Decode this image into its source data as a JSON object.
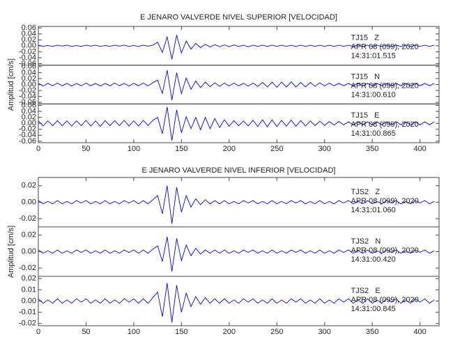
{
  "chart_data": [
    {
      "type": "line",
      "title": "E JENARO VALVERDE NIVEL SUPERIOR [VELOCIDAD]",
      "ylabel": "Amplitud [cm/s]",
      "xlim": [
        0,
        420
      ],
      "xticks": [
        0,
        50,
        100,
        150,
        200,
        250,
        300,
        350,
        400
      ],
      "x": [
        0,
        5,
        10,
        15,
        20,
        25,
        30,
        35,
        40,
        45,
        50,
        55,
        60,
        65,
        70,
        75,
        80,
        85,
        90,
        95,
        100,
        105,
        110,
        115,
        120,
        125,
        130,
        135,
        140,
        145,
        150,
        155,
        160,
        165,
        170,
        175,
        180,
        185,
        190,
        195,
        200,
        205,
        210,
        215,
        220,
        225,
        230,
        235,
        240,
        245,
        250,
        255,
        260,
        265,
        270,
        275,
        280,
        285,
        290,
        295,
        300,
        305,
        310,
        315,
        320,
        325,
        330,
        335,
        340,
        345,
        350,
        355,
        360,
        365,
        370,
        375,
        380,
        385,
        390,
        395,
        400,
        405,
        410,
        415
      ],
      "traces": [
        {
          "label": "TJ15   Z",
          "date": "APR 08 (099), 2020",
          "time": "14:31:01.515",
          "color": "#0000ff",
          "ylim": [
            -0.065,
            0.065
          ],
          "yticks": [
            -0.06,
            -0.04,
            -0.02,
            {
              "value": 0,
              "label": "0.00"
            },
            0.02,
            0.04,
            0.06
          ],
          "values": [
            0.002,
            -0.002,
            0.001,
            -0.002,
            0.002,
            -0.001,
            0.002,
            -0.002,
            0.001,
            -0.002,
            0.002,
            -0.001,
            0.002,
            -0.002,
            0.001,
            -0.002,
            0.002,
            -0.001,
            0.002,
            -0.002,
            0.001,
            -0.002,
            0.002,
            -0.001,
            0.002,
            0.012,
            -0.022,
            0.03,
            -0.045,
            0.036,
            -0.024,
            0.016,
            -0.011,
            0.008,
            -0.006,
            0.005,
            -0.004,
            0.004,
            -0.003,
            0.003,
            -0.003,
            0.003,
            -0.002,
            0.002,
            -0.003,
            0.002,
            -0.002,
            0.002,
            -0.002,
            0.002,
            -0.002,
            0.002,
            -0.002,
            0.002,
            -0.002,
            0.002,
            -0.002,
            0.002,
            -0.002,
            0.002,
            -0.002,
            0.002,
            -0.002,
            0.002,
            -0.002,
            0.002,
            -0.002,
            0.002,
            -0.002,
            0.002,
            -0.002,
            0.002,
            -0.002,
            0.002,
            -0.002,
            0.002,
            -0.002,
            0.002,
            -0.002,
            0.002,
            -0.002,
            0.002,
            -0.002,
            0.002
          ]
        },
        {
          "label": "TJ15   N",
          "date": "APR 08 (099), 2020",
          "time": "14:31:00.610",
          "color": "#0000ff",
          "ylim": [
            -0.065,
            0.065
          ],
          "yticks": [
            -0.06,
            -0.04,
            -0.02,
            {
              "value": 0,
              "label": "0.00"
            },
            0.02,
            0.04,
            0.06
          ],
          "values": [
            0.004,
            -0.005,
            0.004,
            -0.004,
            0.005,
            -0.004,
            0.004,
            -0.005,
            0.004,
            -0.004,
            0.005,
            -0.004,
            0.004,
            -0.005,
            0.004,
            -0.004,
            0.005,
            -0.004,
            0.004,
            -0.005,
            0.004,
            -0.004,
            0.005,
            -0.004,
            0.006,
            0.015,
            -0.03,
            0.048,
            -0.052,
            0.04,
            -0.03,
            0.022,
            -0.016,
            0.012,
            -0.01,
            0.008,
            -0.007,
            0.006,
            -0.006,
            0.005,
            -0.005,
            0.005,
            -0.004,
            0.004,
            -0.005,
            0.005,
            -0.006,
            0.007,
            -0.008,
            0.008,
            -0.009,
            0.008,
            -0.008,
            0.009,
            -0.008,
            0.007,
            -0.008,
            0.007,
            -0.006,
            0.006,
            -0.005,
            0.005,
            -0.004,
            0.004,
            -0.004,
            0.004,
            -0.004,
            0.004,
            -0.004,
            0.004,
            -0.004,
            0.004,
            -0.004,
            0.004,
            -0.004,
            0.004,
            -0.004,
            0.004,
            -0.004,
            0.004,
            -0.004,
            0.004,
            -0.004,
            0.004
          ]
        },
        {
          "label": "TJ15   E",
          "date": "APR 08 (099), 2020",
          "time": "14:31:00.865",
          "color": "#0000ff",
          "ylim": [
            -0.065,
            0.065
          ],
          "yticks": [
            -0.06,
            -0.04,
            -0.02,
            {
              "value": 0,
              "label": "0.00"
            },
            0.02,
            0.04,
            0.06
          ],
          "values": [
            0.008,
            -0.009,
            0.008,
            -0.008,
            0.009,
            -0.008,
            0.008,
            -0.009,
            0.008,
            -0.008,
            0.01,
            -0.009,
            0.008,
            -0.01,
            0.009,
            -0.008,
            0.009,
            -0.008,
            0.01,
            -0.009,
            0.008,
            -0.009,
            0.01,
            -0.008,
            0.01,
            0.02,
            -0.035,
            0.055,
            -0.058,
            0.045,
            -0.032,
            0.022,
            -0.018,
            0.02,
            -0.022,
            0.02,
            -0.018,
            0.016,
            -0.014,
            0.012,
            -0.01,
            0.009,
            -0.008,
            0.008,
            -0.009,
            0.01,
            -0.011,
            0.012,
            -0.012,
            0.012,
            -0.011,
            0.01,
            -0.01,
            0.011,
            -0.01,
            0.009,
            -0.009,
            0.008,
            -0.008,
            0.007,
            -0.007,
            0.006,
            -0.006,
            0.006,
            -0.005,
            0.005,
            -0.005,
            0.005,
            -0.005,
            0.005,
            -0.005,
            0.005,
            -0.005,
            0.005,
            -0.005,
            0.005,
            -0.005,
            0.005,
            -0.005,
            0.005,
            -0.005,
            0.005,
            -0.005,
            0.005
          ]
        }
      ]
    },
    {
      "type": "line",
      "title": "E JENARO VALVERDE NIVEL INFERIOR [VELOCIDAD]",
      "ylabel": "Amplitud [cm/s]",
      "xlim": [
        0,
        420
      ],
      "xticks": [
        0,
        50,
        100,
        150,
        200,
        250,
        300,
        350,
        400
      ],
      "x": [
        0,
        5,
        10,
        15,
        20,
        25,
        30,
        35,
        40,
        45,
        50,
        55,
        60,
        65,
        70,
        75,
        80,
        85,
        90,
        95,
        100,
        105,
        110,
        115,
        120,
        125,
        130,
        135,
        140,
        145,
        150,
        155,
        160,
        165,
        170,
        175,
        180,
        185,
        190,
        195,
        200,
        205,
        210,
        215,
        220,
        225,
        230,
        235,
        240,
        245,
        250,
        255,
        260,
        265,
        270,
        275,
        280,
        285,
        290,
        295,
        300,
        305,
        310,
        315,
        320,
        325,
        330,
        335,
        340,
        345,
        350,
        355,
        360,
        365,
        370,
        375,
        380,
        385,
        390,
        395,
        400,
        405,
        410,
        415
      ],
      "traces": [
        {
          "label": "TJS2   Z",
          "date": "APR 08 (099), 2020",
          "time": "14:31:01.060",
          "color": "#0000ff",
          "ylim": [
            -0.03,
            0.03
          ],
          "yticks": [
            -0.02,
            {
              "value": 0,
              "label": "0.00"
            },
            0.02
          ],
          "values": [
            0.002,
            -0.002,
            0.001,
            -0.002,
            0.002,
            -0.002,
            0.001,
            -0.002,
            0.002,
            -0.001,
            0.002,
            -0.002,
            0.001,
            -0.002,
            0.002,
            -0.002,
            0.001,
            -0.002,
            0.002,
            -0.001,
            0.002,
            -0.002,
            0.002,
            -0.002,
            0.003,
            0.008,
            -0.014,
            0.02,
            -0.026,
            0.018,
            -0.012,
            0.008,
            -0.006,
            0.004,
            -0.003,
            0.003,
            -0.002,
            0.002,
            -0.002,
            0.002,
            -0.002,
            0.001,
            -0.002,
            0.002,
            -0.001,
            0.002,
            -0.002,
            0.001,
            -0.002,
            0.002,
            -0.002,
            0.001,
            -0.002,
            0.002,
            -0.001,
            0.002,
            -0.002,
            0.001,
            -0.002,
            0.002,
            -0.002,
            0.001,
            -0.002,
            0.002,
            -0.001,
            0.002,
            -0.002,
            0.001,
            -0.002,
            0.002,
            -0.002,
            0.001,
            -0.002,
            0.002,
            -0.001,
            0.002,
            -0.002,
            0.001,
            -0.002,
            0.002,
            -0.001,
            0.002,
            -0.002,
            0.001
          ]
        },
        {
          "label": "TJS2   N",
          "date": "APR 08 (099), 2020",
          "time": "14:31:00.420",
          "color": "#0000ff",
          "ylim": [
            -0.03,
            0.03
          ],
          "yticks": [
            -0.02,
            {
              "value": 0,
              "label": "0.00"
            },
            0.02
          ],
          "values": [
            0.002,
            -0.002,
            0.001,
            -0.002,
            0.002,
            -0.002,
            0.001,
            -0.002,
            0.002,
            -0.001,
            0.002,
            -0.002,
            0.001,
            -0.002,
            0.002,
            -0.002,
            0.001,
            -0.002,
            0.002,
            -0.001,
            0.002,
            -0.002,
            0.002,
            -0.002,
            0.003,
            0.007,
            -0.012,
            0.018,
            -0.024,
            0.016,
            -0.011,
            0.008,
            -0.005,
            0.004,
            -0.003,
            0.002,
            -0.002,
            0.002,
            -0.002,
            0.002,
            -0.002,
            0.001,
            -0.002,
            0.002,
            -0.001,
            0.002,
            -0.002,
            0.001,
            -0.002,
            0.002,
            -0.002,
            0.001,
            -0.002,
            0.002,
            -0.001,
            0.002,
            -0.002,
            0.001,
            -0.002,
            0.002,
            -0.002,
            0.001,
            -0.002,
            0.002,
            -0.001,
            0.002,
            -0.002,
            0.001,
            -0.002,
            0.002,
            -0.002,
            0.001,
            -0.002,
            0.002,
            -0.001,
            0.002,
            -0.002,
            0.001,
            -0.002,
            0.002,
            -0.001,
            0.002,
            -0.002,
            0.001
          ]
        },
        {
          "label": "TJS2   E",
          "date": "APR 08 (099), 2020",
          "time": "14:31:00.845",
          "color": "#0000ff",
          "ylim": [
            -0.022,
            0.022
          ],
          "yticks": [
            -0.02,
            -0.01,
            {
              "value": 0,
              "label": "0.00"
            },
            0.01,
            0.02
          ],
          "values": [
            0.002,
            -0.002,
            0.001,
            -0.002,
            0.002,
            -0.002,
            0.001,
            -0.002,
            0.002,
            -0.001,
            0.002,
            -0.002,
            0.001,
            -0.002,
            0.002,
            -0.002,
            0.001,
            -0.002,
            0.002,
            -0.001,
            0.002,
            -0.002,
            0.002,
            -0.002,
            0.003,
            0.008,
            -0.014,
            0.016,
            -0.019,
            0.014,
            -0.01,
            0.007,
            -0.005,
            0.004,
            -0.003,
            0.003,
            -0.002,
            0.002,
            -0.002,
            0.002,
            -0.002,
            0.001,
            -0.002,
            0.002,
            -0.001,
            0.002,
            -0.002,
            0.001,
            -0.002,
            0.002,
            -0.002,
            0.001,
            -0.002,
            0.002,
            -0.001,
            0.002,
            -0.002,
            0.001,
            -0.002,
            0.002,
            -0.002,
            0.001,
            -0.002,
            0.002,
            -0.001,
            0.002,
            -0.002,
            0.001,
            -0.002,
            0.002,
            -0.002,
            0.001,
            -0.002,
            0.002,
            -0.001,
            0.002,
            -0.002,
            0.001,
            -0.002,
            0.002,
            -0.001,
            0.002,
            -0.002,
            0.001
          ]
        }
      ]
    }
  ]
}
